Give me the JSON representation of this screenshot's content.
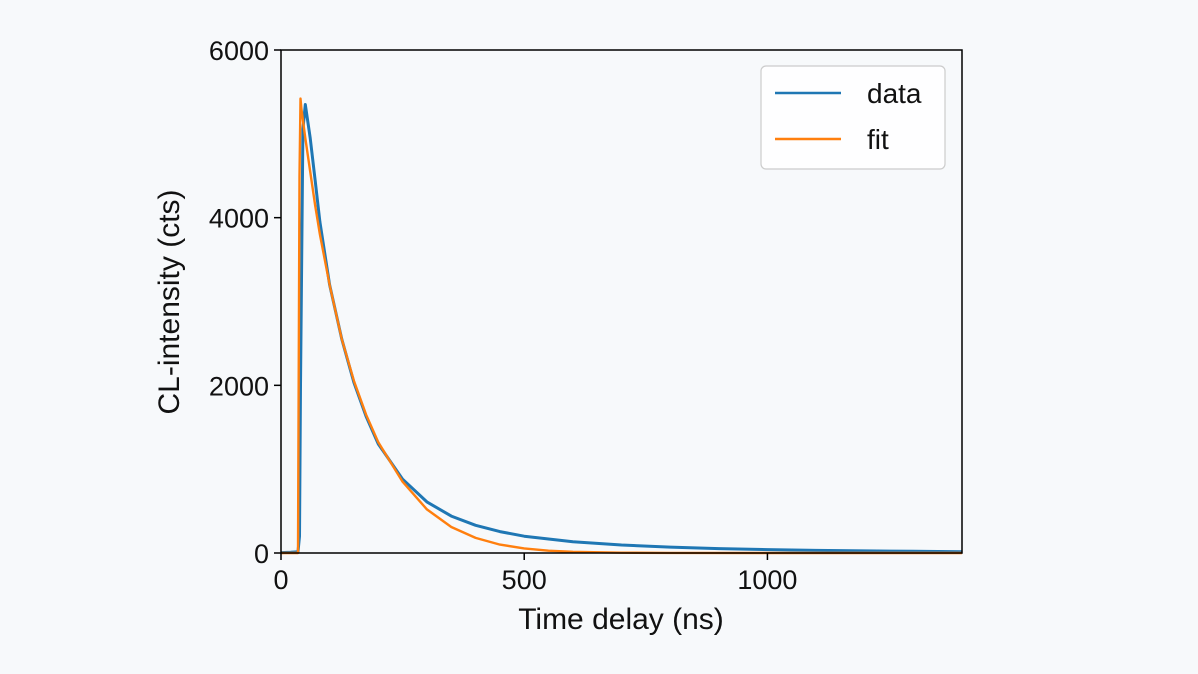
{
  "chart_data": {
    "type": "line",
    "xlabel": "Time delay (ns)",
    "ylabel": "CL-intensity (cts)",
    "xlim": [
      0,
      1400
    ],
    "ylim": [
      0,
      6000
    ],
    "xticks": [
      0,
      500,
      1000
    ],
    "yticks": [
      0,
      2000,
      4000,
      6000
    ],
    "x_tick_labels": [
      "0",
      "500",
      "1000"
    ],
    "y_tick_labels": [
      "0",
      "2000",
      "4000",
      "6000"
    ],
    "grid": false,
    "legend_position": "top-right",
    "series": [
      {
        "name": "data",
        "color": "#1f77b4",
        "x": [
          0,
          20,
          35,
          38,
          40,
          45,
          50,
          60,
          70,
          80,
          100,
          125,
          150,
          175,
          200,
          250,
          300,
          350,
          400,
          450,
          500,
          600,
          700,
          800,
          900,
          1000,
          1100,
          1200,
          1300,
          1400
        ],
        "y": [
          5,
          10,
          15,
          200,
          2000,
          5050,
          5350,
          4950,
          4450,
          3950,
          3200,
          2550,
          2030,
          1630,
          1300,
          880,
          610,
          440,
          330,
          255,
          200,
          135,
          95,
          70,
          52,
          40,
          31,
          25,
          20,
          15
        ]
      },
      {
        "name": "fit",
        "color": "#ff7f0e",
        "x": [
          0,
          35,
          36,
          38,
          40,
          42,
          50,
          60,
          70,
          80,
          100,
          125,
          150,
          175,
          200,
          250,
          300,
          350,
          400,
          450,
          500,
          550,
          600,
          700,
          800,
          1000,
          1200,
          1400
        ],
        "y": [
          0,
          0,
          1500,
          4500,
          5420,
          5300,
          4950,
          4550,
          4150,
          3800,
          3200,
          2550,
          2050,
          1650,
          1320,
          850,
          520,
          310,
          180,
          100,
          55,
          28,
          14,
          4,
          1,
          0,
          0,
          0
        ]
      }
    ]
  }
}
